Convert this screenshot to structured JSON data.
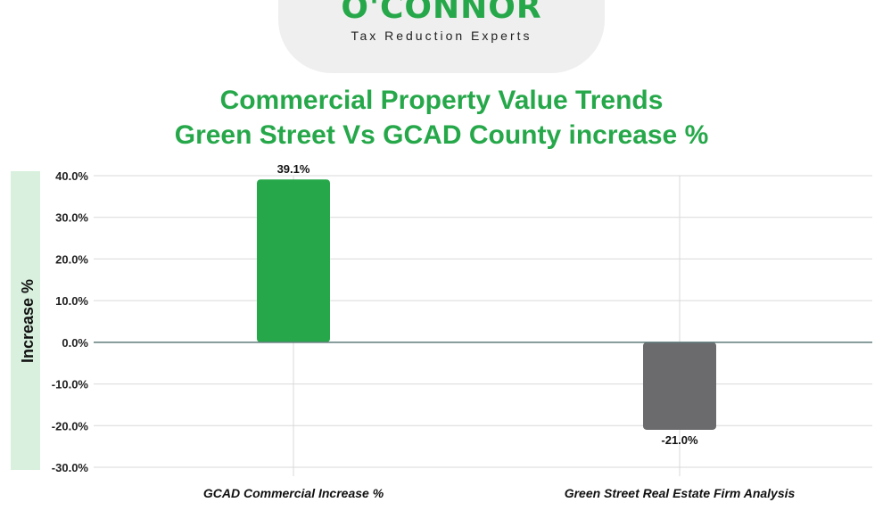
{
  "logo": {
    "wordmark": "O'CONNOR",
    "tagline": "Tax Reduction Experts"
  },
  "chart_data": {
    "type": "bar",
    "title_lines": [
      "Commercial Property Value Trends",
      "Green Street Vs GCAD County increase %"
    ],
    "ylabel": "Increase %",
    "xlabel": "",
    "ylim": [
      -30,
      40
    ],
    "yticks": [
      40,
      30,
      20,
      10,
      0,
      -10,
      -20,
      -30
    ],
    "ytick_labels": [
      "40.0%",
      "30.0%",
      "20.0%",
      "10.0%",
      "0.0%",
      "-10.0%",
      "-20.0%",
      "-30.0%"
    ],
    "categories": [
      "GCAD Commercial Increase %",
      "Green Street Real Estate Firm Analysis"
    ],
    "values": [
      39.1,
      -21.0
    ],
    "value_labels": [
      "39.1%",
      "-21.0%"
    ],
    "colors": [
      "#26a84a",
      "#6b6b6e"
    ],
    "grid": true,
    "legend": "none"
  },
  "colors": {
    "accent": "#26a84a",
    "ylabel_band": "#d8f0dd",
    "zero_line": "#5f7a7a",
    "grid": "#d9d9d9"
  }
}
